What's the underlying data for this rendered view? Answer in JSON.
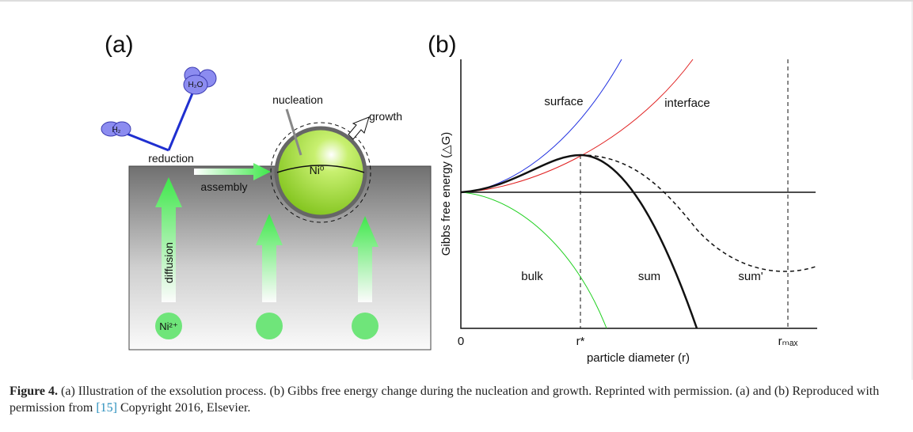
{
  "panel_a": {
    "label": "(a)",
    "h2": "H₂",
    "h2o": "H₂O",
    "reduction": "reduction",
    "nucleation": "nucleation",
    "growth": "growth",
    "ni0": "Ni⁰",
    "assembly": "assembly",
    "diffusion": "diffusion",
    "ni2": "Ni²⁺"
  },
  "panel_b": {
    "label": "(b)",
    "y_label": "Gibbs free energy (△G)",
    "x_label": "particle diameter (r)",
    "surface": "surface",
    "interface": "interface",
    "bulk": "bulk",
    "sum": "sum",
    "sum_prime": "sum'",
    "tick_0": "0",
    "tick_rstar": "r*",
    "tick_rmax": "rₘₐₓ"
  },
  "caption": {
    "label": "Figure 4.",
    "text": " (a) Illustration of the exsolution process. (b) Gibbs free energy change during the nucleation and growth. Reprinted with permission. (a) and (b) Reproduced with permission from ",
    "ref": "[15]",
    "tail": " Copyright 2016, Elsevier."
  }
}
